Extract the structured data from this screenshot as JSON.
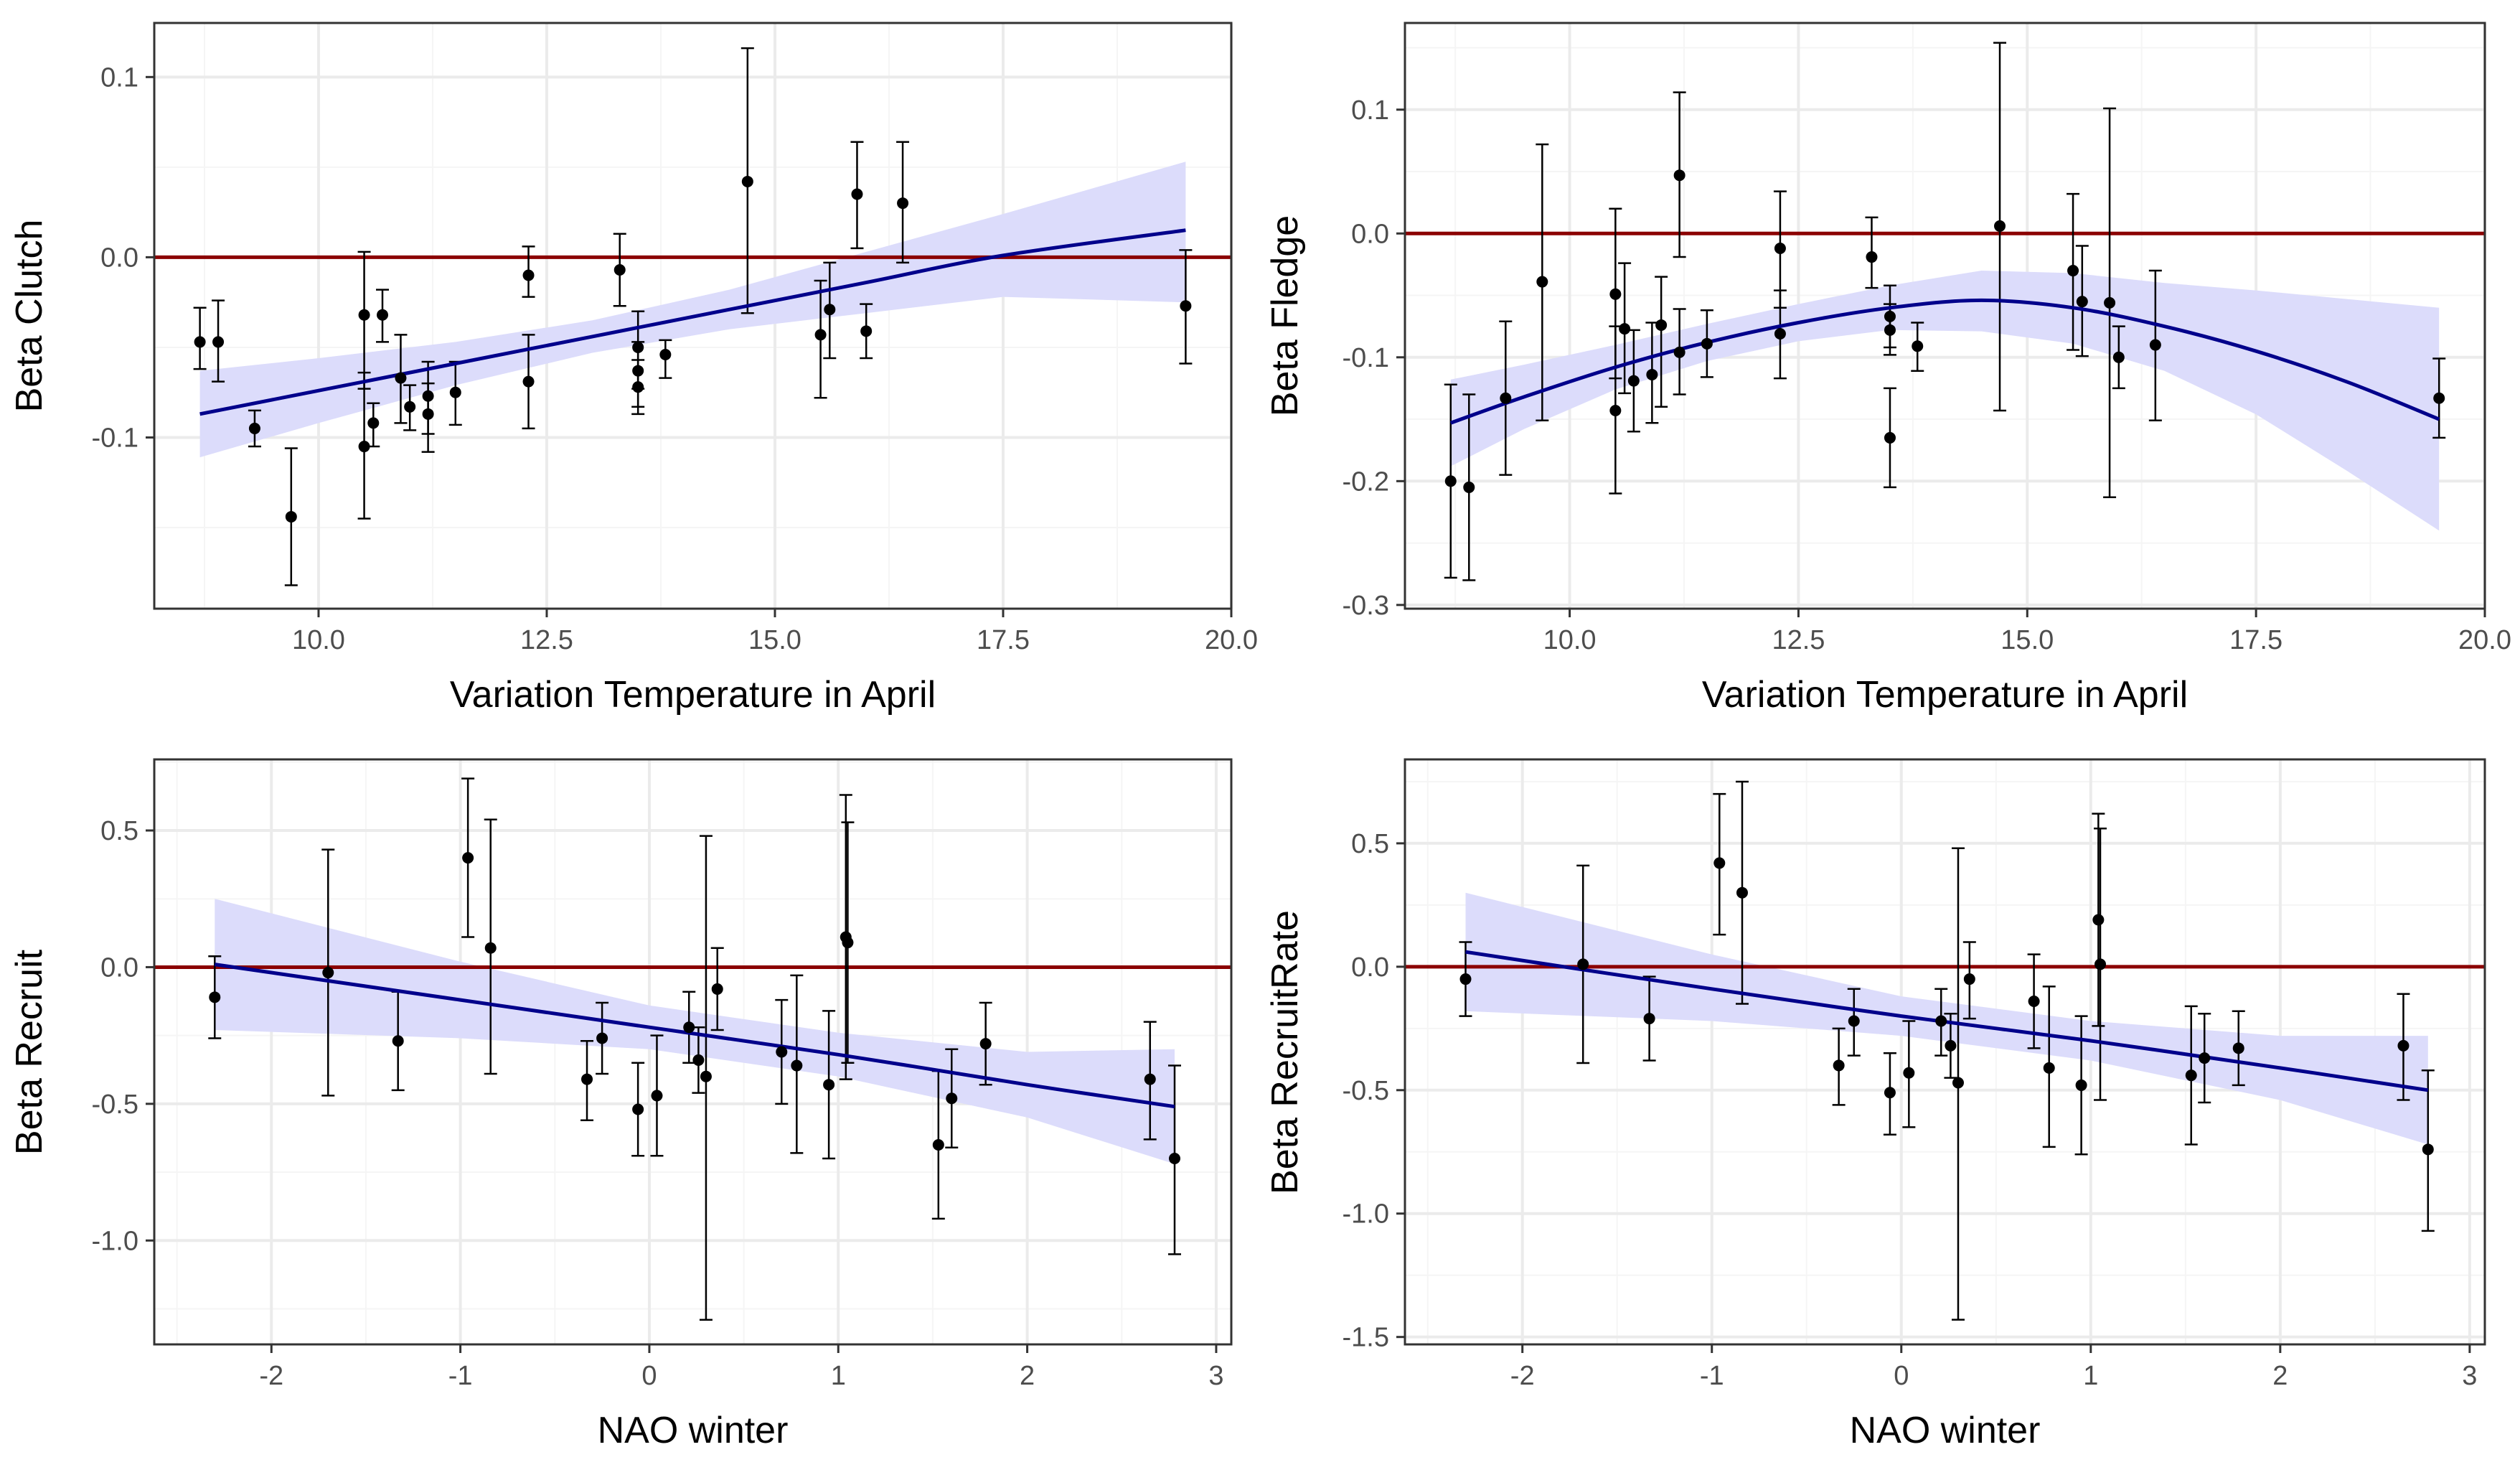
{
  "colors": {
    "panel_border": "#333333",
    "grid_major": "#ebebeb",
    "grid_minor": "#f5f5f5",
    "reference_line": "#8b0000",
    "fit_line": "#00008b",
    "ribbon": "#dcdcfb",
    "points": "#000000",
    "tick_text": "#4d4d4d"
  },
  "chart_data": [
    {
      "type": "scatter",
      "xlabel": "Variation Temperature in April",
      "ylabel": "Beta Clutch",
      "xlim": [
        8.2,
        20.0
      ],
      "ylim": [
        -0.195,
        0.13
      ],
      "xticks": [
        10.0,
        12.5,
        15.0,
        17.5,
        20.0
      ],
      "xtick_labels": [
        "10.0",
        "12.5",
        "15.0",
        "17.5",
        "20.0"
      ],
      "yticks": [
        -0.1,
        0.0,
        0.1
      ],
      "ytick_labels": [
        "-0.1",
        "0.0",
        "0.1"
      ],
      "reference_y": 0,
      "points": [
        {
          "x": 8.7,
          "y": -0.047,
          "lo": -0.062,
          "hi": -0.028
        },
        {
          "x": 8.9,
          "y": -0.047,
          "lo": -0.069,
          "hi": -0.024
        },
        {
          "x": 9.3,
          "y": -0.095,
          "lo": -0.105,
          "hi": -0.085
        },
        {
          "x": 9.7,
          "y": -0.144,
          "lo": -0.182,
          "hi": -0.106
        },
        {
          "x": 10.5,
          "y": -0.032,
          "lo": -0.073,
          "hi": 0.003
        },
        {
          "x": 10.5,
          "y": -0.105,
          "lo": -0.145,
          "hi": -0.064
        },
        {
          "x": 10.6,
          "y": -0.092,
          "lo": -0.105,
          "hi": -0.081
        },
        {
          "x": 10.7,
          "y": -0.032,
          "lo": -0.047,
          "hi": -0.018
        },
        {
          "x": 10.9,
          "y": -0.067,
          "lo": -0.092,
          "hi": -0.043
        },
        {
          "x": 11.0,
          "y": -0.083,
          "lo": -0.096,
          "hi": -0.071
        },
        {
          "x": 11.2,
          "y": -0.077,
          "lo": -0.098,
          "hi": -0.058
        },
        {
          "x": 11.2,
          "y": -0.087,
          "lo": -0.108,
          "hi": -0.07
        },
        {
          "x": 11.5,
          "y": -0.075,
          "lo": -0.093,
          "hi": -0.058
        },
        {
          "x": 12.3,
          "y": -0.01,
          "lo": -0.022,
          "hi": 0.006
        },
        {
          "x": 12.3,
          "y": -0.069,
          "lo": -0.095,
          "hi": -0.043
        },
        {
          "x": 13.3,
          "y": -0.007,
          "lo": -0.027,
          "hi": 0.013
        },
        {
          "x": 13.5,
          "y": -0.05,
          "lo": -0.073,
          "hi": -0.03
        },
        {
          "x": 13.5,
          "y": -0.063,
          "lo": -0.083,
          "hi": -0.047
        },
        {
          "x": 13.5,
          "y": -0.072,
          "lo": -0.087,
          "hi": -0.057
        },
        {
          "x": 13.8,
          "y": -0.054,
          "lo": -0.067,
          "hi": -0.046
        },
        {
          "x": 14.7,
          "y": 0.042,
          "lo": -0.031,
          "hi": 0.116
        },
        {
          "x": 15.5,
          "y": -0.043,
          "lo": -0.078,
          "hi": -0.013
        },
        {
          "x": 15.6,
          "y": -0.029,
          "lo": -0.056,
          "hi": -0.003
        },
        {
          "x": 15.9,
          "y": 0.035,
          "lo": 0.005,
          "hi": 0.064
        },
        {
          "x": 16.0,
          "y": -0.041,
          "lo": -0.056,
          "hi": -0.026
        },
        {
          "x": 16.4,
          "y": 0.03,
          "lo": -0.003,
          "hi": 0.064
        },
        {
          "x": 19.5,
          "y": -0.027,
          "lo": -0.059,
          "hi": 0.004
        }
      ],
      "fit": {
        "x": [
          8.7,
          10.0,
          11.5,
          13.0,
          14.5,
          16.0,
          17.5,
          19.5
        ],
        "y": [
          -0.087,
          -0.074,
          -0.059,
          -0.044,
          -0.029,
          -0.014,
          0.001,
          0.015
        ],
        "lo": [
          -0.111,
          -0.092,
          -0.071,
          -0.053,
          -0.04,
          -0.031,
          -0.022,
          -0.025
        ],
        "hi": [
          -0.063,
          -0.056,
          -0.047,
          -0.035,
          -0.018,
          0.003,
          0.024,
          0.053
        ]
      }
    },
    {
      "type": "scatter",
      "xlabel": "Variation Temperature in April",
      "ylabel": "Beta Fledge",
      "xlim": [
        8.2,
        20.0
      ],
      "ylim": [
        -0.303,
        0.17
      ],
      "xticks": [
        10.0,
        12.5,
        15.0,
        17.5,
        20.0
      ],
      "xtick_labels": [
        "10.0",
        "12.5",
        "15.0",
        "17.5",
        "20.0"
      ],
      "yticks": [
        -0.3,
        -0.2,
        -0.1,
        0.0,
        0.1
      ],
      "ytick_labels": [
        "-0.3",
        "-0.2",
        "-0.1",
        "0.0",
        "0.1"
      ],
      "reference_y": 0,
      "points": [
        {
          "x": 8.7,
          "y": -0.2,
          "lo": -0.278,
          "hi": -0.122
        },
        {
          "x": 8.9,
          "y": -0.205,
          "lo": -0.28,
          "hi": -0.13
        },
        {
          "x": 9.3,
          "y": -0.133,
          "lo": -0.195,
          "hi": -0.071
        },
        {
          "x": 9.7,
          "y": -0.039,
          "lo": -0.151,
          "hi": 0.072
        },
        {
          "x": 10.5,
          "y": -0.049,
          "lo": -0.117,
          "hi": 0.02
        },
        {
          "x": 10.5,
          "y": -0.143,
          "lo": -0.21,
          "hi": -0.075
        },
        {
          "x": 10.6,
          "y": -0.077,
          "lo": -0.129,
          "hi": -0.024
        },
        {
          "x": 10.7,
          "y": -0.119,
          "lo": -0.16,
          "hi": -0.078
        },
        {
          "x": 10.9,
          "y": -0.114,
          "lo": -0.153,
          "hi": -0.072
        },
        {
          "x": 11.0,
          "y": -0.074,
          "lo": -0.14,
          "hi": -0.035
        },
        {
          "x": 11.2,
          "y": 0.047,
          "lo": -0.019,
          "hi": 0.114
        },
        {
          "x": 11.2,
          "y": -0.096,
          "lo": -0.13,
          "hi": -0.061
        },
        {
          "x": 11.5,
          "y": -0.089,
          "lo": -0.116,
          "hi": -0.062
        },
        {
          "x": 12.3,
          "y": -0.012,
          "lo": -0.06,
          "hi": 0.034
        },
        {
          "x": 12.3,
          "y": -0.081,
          "lo": -0.117,
          "hi": -0.046
        },
        {
          "x": 13.3,
          "y": -0.019,
          "lo": -0.044,
          "hi": 0.013
        },
        {
          "x": 13.5,
          "y": -0.067,
          "lo": -0.092,
          "hi": -0.042
        },
        {
          "x": 13.5,
          "y": -0.078,
          "lo": -0.098,
          "hi": -0.057
        },
        {
          "x": 13.5,
          "y": -0.165,
          "lo": -0.205,
          "hi": -0.125
        },
        {
          "x": 13.8,
          "y": -0.091,
          "lo": -0.111,
          "hi": -0.072
        },
        {
          "x": 14.7,
          "y": 0.006,
          "lo": -0.143,
          "hi": 0.154
        },
        {
          "x": 15.5,
          "y": -0.03,
          "lo": -0.094,
          "hi": 0.032
        },
        {
          "x": 15.6,
          "y": -0.055,
          "lo": -0.099,
          "hi": -0.01
        },
        {
          "x": 15.9,
          "y": -0.056,
          "lo": -0.213,
          "hi": 0.101
        },
        {
          "x": 16.0,
          "y": -0.1,
          "lo": -0.125,
          "hi": -0.075
        },
        {
          "x": 16.4,
          "y": -0.09,
          "lo": -0.151,
          "hi": -0.03
        },
        {
          "x": 19.5,
          "y": -0.133,
          "lo": -0.165,
          "hi": -0.101
        }
      ],
      "fit": {
        "x": [
          8.7,
          9.5,
          10.5,
          11.5,
          12.5,
          13.5,
          14.5,
          15.5,
          16.5,
          17.5,
          18.5,
          19.5
        ],
        "y": [
          -0.153,
          -0.132,
          -0.108,
          -0.088,
          -0.072,
          -0.06,
          -0.054,
          -0.06,
          -0.075,
          -0.095,
          -0.12,
          -0.15
        ],
        "lo": [
          -0.188,
          -0.158,
          -0.126,
          -0.103,
          -0.087,
          -0.078,
          -0.079,
          -0.089,
          -0.111,
          -0.146,
          -0.192,
          -0.24
        ],
        "hi": [
          -0.118,
          -0.106,
          -0.09,
          -0.073,
          -0.057,
          -0.042,
          -0.03,
          -0.032,
          -0.04,
          -0.046,
          -0.053,
          -0.06
        ]
      }
    },
    {
      "type": "scatter",
      "xlabel": "NAO winter",
      "ylabel": "Beta Recruit",
      "xlim": [
        -2.62,
        3.08
      ],
      "ylim": [
        -1.38,
        0.76
      ],
      "xticks": [
        -2,
        -1,
        0,
        1,
        2,
        3
      ],
      "xtick_labels": [
        "-2",
        "-1",
        "0",
        "1",
        "2",
        "3"
      ],
      "yticks": [
        -1.0,
        -0.5,
        0.0,
        0.5
      ],
      "ytick_labels": [
        "-1.0",
        "-0.5",
        "0.0",
        "0.5"
      ],
      "reference_y": 0,
      "points": [
        {
          "x": -2.3,
          "y": -0.11,
          "lo": -0.26,
          "hi": 0.04
        },
        {
          "x": -1.7,
          "y": -0.02,
          "lo": -0.47,
          "hi": 0.43
        },
        {
          "x": -1.33,
          "y": -0.27,
          "lo": -0.45,
          "hi": -0.09
        },
        {
          "x": -0.96,
          "y": 0.4,
          "lo": 0.11,
          "hi": 0.69
        },
        {
          "x": -0.84,
          "y": 0.07,
          "lo": -0.39,
          "hi": 0.54
        },
        {
          "x": -0.33,
          "y": -0.41,
          "lo": -0.56,
          "hi": -0.27
        },
        {
          "x": -0.25,
          "y": -0.26,
          "lo": -0.39,
          "hi": -0.13
        },
        {
          "x": -0.06,
          "y": -0.52,
          "lo": -0.69,
          "hi": -0.35
        },
        {
          "x": 0.04,
          "y": -0.47,
          "lo": -0.69,
          "hi": -0.25
        },
        {
          "x": 0.21,
          "y": -0.22,
          "lo": -0.35,
          "hi": -0.09
        },
        {
          "x": 0.26,
          "y": -0.34,
          "lo": -0.46,
          "hi": -0.22
        },
        {
          "x": 0.3,
          "y": -0.4,
          "lo": -1.29,
          "hi": 0.48
        },
        {
          "x": 0.36,
          "y": -0.08,
          "lo": -0.23,
          "hi": 0.07
        },
        {
          "x": 0.7,
          "y": -0.31,
          "lo": -0.5,
          "hi": -0.12
        },
        {
          "x": 0.78,
          "y": -0.36,
          "lo": -0.68,
          "hi": -0.03
        },
        {
          "x": 0.95,
          "y": -0.43,
          "lo": -0.7,
          "hi": -0.16
        },
        {
          "x": 1.04,
          "y": 0.11,
          "lo": -0.41,
          "hi": 0.63
        },
        {
          "x": 1.05,
          "y": 0.09,
          "lo": -0.35,
          "hi": 0.53
        },
        {
          "x": 1.53,
          "y": -0.65,
          "lo": -0.92,
          "hi": -0.38
        },
        {
          "x": 1.6,
          "y": -0.48,
          "lo": -0.66,
          "hi": -0.3
        },
        {
          "x": 1.78,
          "y": -0.28,
          "lo": -0.43,
          "hi": -0.13
        },
        {
          "x": 2.65,
          "y": -0.41,
          "lo": -0.63,
          "hi": -0.2
        },
        {
          "x": 2.78,
          "y": -0.7,
          "lo": -1.05,
          "hi": -0.36
        }
      ],
      "fit": {
        "x": [
          -2.3,
          -1.0,
          0.0,
          1.0,
          2.0,
          2.78
        ],
        "y": [
          0.01,
          -0.12,
          -0.22,
          -0.32,
          -0.43,
          -0.51
        ],
        "lo": [
          -0.23,
          -0.26,
          -0.3,
          -0.4,
          -0.55,
          -0.72
        ],
        "hi": [
          0.25,
          0.02,
          -0.14,
          -0.24,
          -0.31,
          -0.3
        ]
      }
    },
    {
      "type": "scatter",
      "xlabel": "NAO winter",
      "ylabel": "Beta RecruitRate",
      "xlim": [
        -2.62,
        3.08
      ],
      "ylim": [
        -1.53,
        0.84
      ],
      "xticks": [
        -2,
        -1,
        0,
        1,
        2,
        3
      ],
      "xtick_labels": [
        "-2",
        "-1",
        "0",
        "1",
        "2",
        "3"
      ],
      "yticks": [
        -1.5,
        -1.0,
        -0.5,
        0.0,
        0.5
      ],
      "ytick_labels": [
        "-1.5",
        "-1.0",
        "-0.5",
        "0.0",
        "0.5"
      ],
      "reference_y": 0,
      "points": [
        {
          "x": -2.3,
          "y": -0.05,
          "lo": -0.2,
          "hi": 0.1
        },
        {
          "x": -1.68,
          "y": 0.01,
          "lo": -0.39,
          "hi": 0.41
        },
        {
          "x": -1.33,
          "y": -0.21,
          "lo": -0.38,
          "hi": -0.04
        },
        {
          "x": -0.96,
          "y": 0.42,
          "lo": 0.13,
          "hi": 0.7
        },
        {
          "x": -0.84,
          "y": 0.3,
          "lo": -0.15,
          "hi": 0.75
        },
        {
          "x": -0.33,
          "y": -0.4,
          "lo": -0.56,
          "hi": -0.25
        },
        {
          "x": -0.25,
          "y": -0.22,
          "lo": -0.36,
          "hi": -0.09
        },
        {
          "x": -0.06,
          "y": -0.51,
          "lo": -0.68,
          "hi": -0.35
        },
        {
          "x": 0.04,
          "y": -0.43,
          "lo": -0.65,
          "hi": -0.22
        },
        {
          "x": 0.21,
          "y": -0.22,
          "lo": -0.36,
          "hi": -0.09
        },
        {
          "x": 0.26,
          "y": -0.32,
          "lo": -0.45,
          "hi": -0.19
        },
        {
          "x": 0.3,
          "y": -0.47,
          "lo": -1.43,
          "hi": 0.48
        },
        {
          "x": 0.36,
          "y": -0.05,
          "lo": -0.21,
          "hi": 0.1
        },
        {
          "x": 0.7,
          "y": -0.14,
          "lo": -0.33,
          "hi": 0.05
        },
        {
          "x": 0.78,
          "y": -0.41,
          "lo": -0.73,
          "hi": -0.08
        },
        {
          "x": 0.95,
          "y": -0.48,
          "lo": -0.76,
          "hi": -0.2
        },
        {
          "x": 1.04,
          "y": 0.19,
          "lo": -0.24,
          "hi": 0.62
        },
        {
          "x": 1.05,
          "y": 0.01,
          "lo": -0.54,
          "hi": 0.56
        },
        {
          "x": 1.53,
          "y": -0.44,
          "lo": -0.72,
          "hi": -0.16
        },
        {
          "x": 1.6,
          "y": -0.37,
          "lo": -0.55,
          "hi": -0.19
        },
        {
          "x": 1.78,
          "y": -0.33,
          "lo": -0.48,
          "hi": -0.18
        },
        {
          "x": 2.65,
          "y": -0.32,
          "lo": -0.54,
          "hi": -0.11
        },
        {
          "x": 2.78,
          "y": -0.74,
          "lo": -1.07,
          "hi": -0.42
        }
      ],
      "fit": {
        "x": [
          -2.3,
          -1.0,
          0.0,
          1.0,
          2.0,
          2.78
        ],
        "y": [
          0.06,
          -0.09,
          -0.2,
          -0.3,
          -0.41,
          -0.5
        ],
        "lo": [
          -0.18,
          -0.22,
          -0.28,
          -0.38,
          -0.54,
          -0.72
        ],
        "hi": [
          0.3,
          0.05,
          -0.12,
          -0.22,
          -0.28,
          -0.28
        ]
      }
    }
  ]
}
